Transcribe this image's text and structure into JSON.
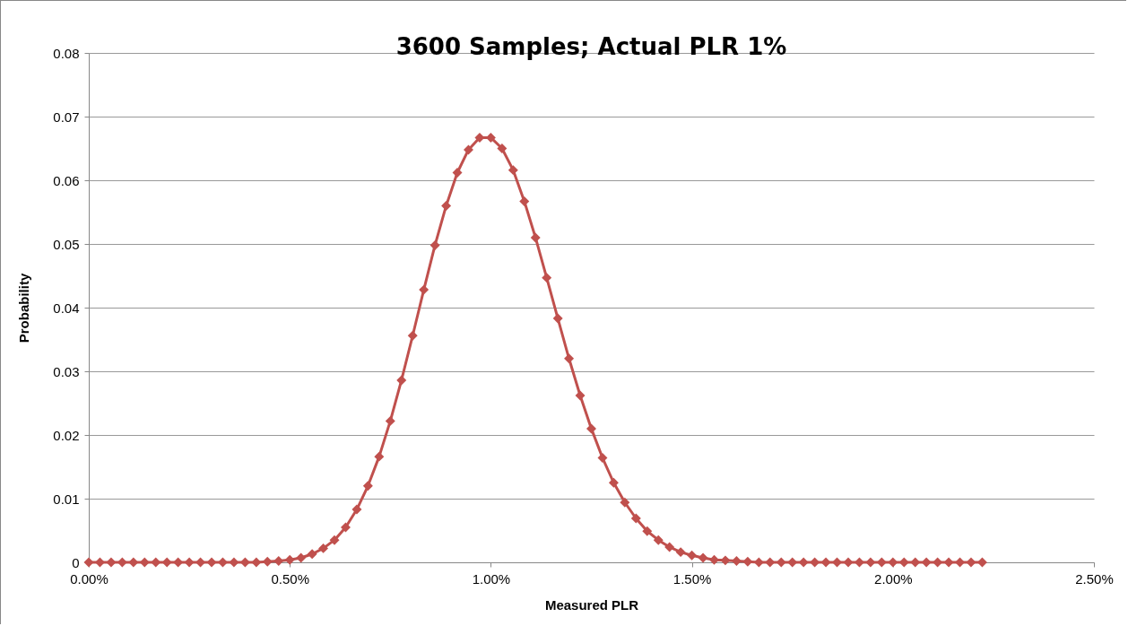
{
  "chart_data": {
    "type": "line",
    "title": "3600 Samples; Actual PLR 1%",
    "xlabel": "Measured PLR",
    "ylabel": "Probability",
    "x": [
      0,
      0.000278,
      0.000556,
      0.000833,
      0.001111,
      0.001389,
      0.001667,
      0.001944,
      0.002222,
      0.0025,
      0.002778,
      0.003056,
      0.003333,
      0.003611,
      0.003889,
      0.004167,
      0.004444,
      0.004722,
      0.005,
      0.005278,
      0.005556,
      0.005833,
      0.006111,
      0.006389,
      0.006667,
      0.006944,
      0.007222,
      0.0075,
      0.007778,
      0.008056,
      0.008333,
      0.008611,
      0.008889,
      0.009167,
      0.009444,
      0.009722,
      0.01,
      0.010278,
      0.010556,
      0.010833,
      0.011111,
      0.011389,
      0.011667,
      0.011944,
      0.012222,
      0.0125,
      0.012778,
      0.013056,
      0.013333,
      0.013611,
      0.013889,
      0.014167,
      0.014444,
      0.014722,
      0.015,
      0.015278,
      0.015556,
      0.015833,
      0.016111,
      0.016389,
      0.016667,
      0.016944,
      0.017222,
      0.0175,
      0.017778,
      0.018056,
      0.018333,
      0.018611,
      0.018889,
      0.019167,
      0.019444,
      0.019722,
      0.02,
      0.020278,
      0.020556,
      0.020833,
      0.021111,
      0.021389,
      0.021667,
      0.021944,
      0.022222
    ],
    "series": [
      {
        "color": "#c0504d",
        "values": [
          0,
          0,
          0,
          0,
          0,
          0,
          0,
          0,
          0,
          0,
          0,
          0,
          0,
          0,
          0,
          0,
          0.0001,
          0.0002,
          0.0004,
          0.0007,
          0.0013,
          0.0022,
          0.0035,
          0.0055,
          0.0083,
          0.012,
          0.0166,
          0.0222,
          0.0286,
          0.0356,
          0.0428,
          0.0498,
          0.056,
          0.0612,
          0.0648,
          0.0667,
          0.0667,
          0.065,
          0.0616,
          0.0567,
          0.051,
          0.0447,
          0.0383,
          0.032,
          0.0262,
          0.021,
          0.0164,
          0.0125,
          0.0094,
          0.0069,
          0.0049,
          0.0035,
          0.0024,
          0.0016,
          0.0011,
          0.0007,
          0.0004,
          0.0003,
          0.0002,
          0.0001,
          0,
          0,
          0,
          0,
          0,
          0,
          0,
          0,
          0,
          0,
          0,
          0,
          0,
          0,
          0,
          0,
          0,
          0,
          0,
          0,
          0
        ]
      }
    ],
    "xlim": [
      0,
      0.025
    ],
    "xticks": [
      {
        "value": 0,
        "label": "0.00%"
      },
      {
        "value": 0.005,
        "label": "0.50%"
      },
      {
        "value": 0.01,
        "label": "1.00%"
      },
      {
        "value": 0.015,
        "label": "1.50%"
      },
      {
        "value": 0.02,
        "label": "2.00%"
      },
      {
        "value": 0.025,
        "label": "2.50%"
      }
    ],
    "ylim": [
      0,
      0.08
    ],
    "yticks": [
      0,
      0.01,
      0.02,
      0.03,
      0.04,
      0.05,
      0.06,
      0.07,
      0.08
    ],
    "grid": "y",
    "marker": "diamond",
    "line_style": "solid"
  }
}
